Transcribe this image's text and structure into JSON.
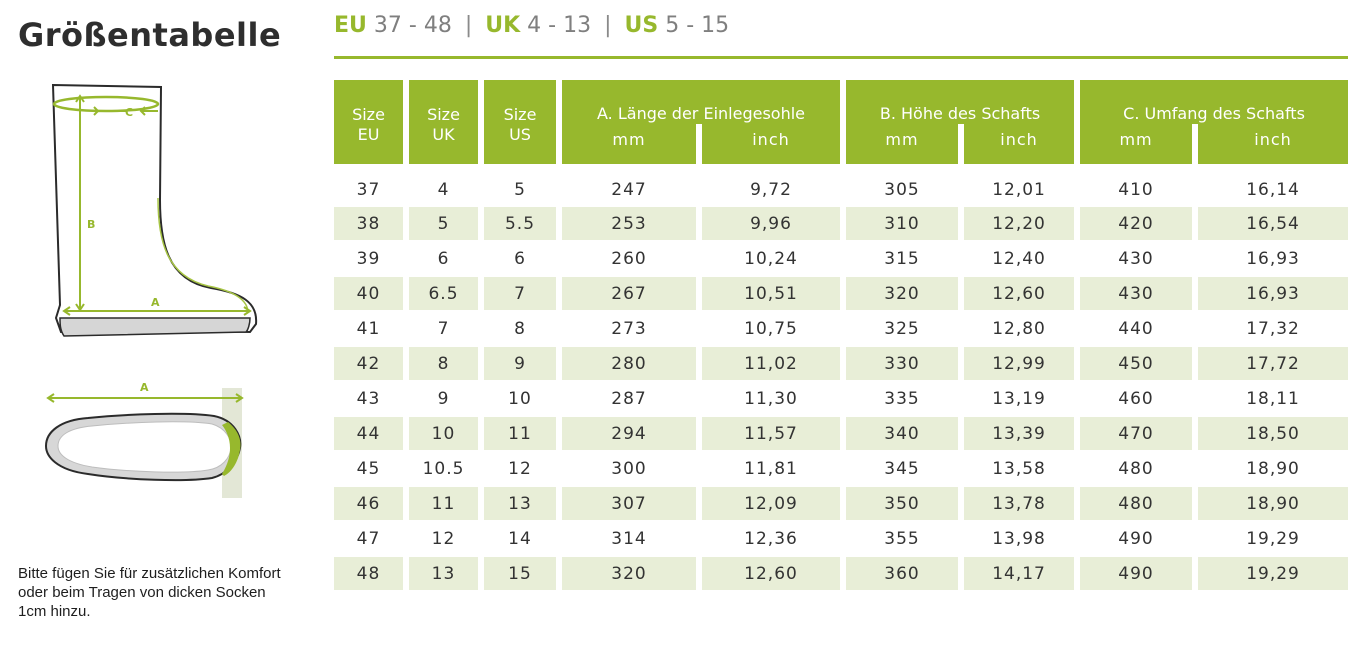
{
  "title": "Größentabelle",
  "ranges": [
    {
      "code": "EU",
      "range": "37 - 48"
    },
    {
      "code": "UK",
      "range": "4 - 13"
    },
    {
      "code": "US",
      "range": "5 - 15"
    }
  ],
  "separator": "|",
  "diagram": {
    "label_a": "A",
    "label_b": "B",
    "label_c": "C"
  },
  "table": {
    "header": {
      "size_eu": [
        "Size",
        "EU"
      ],
      "size_uk": [
        "Size",
        "UK"
      ],
      "size_us": [
        "Size",
        "US"
      ],
      "group_a": "A. Länge der Einlegesohle",
      "group_b": "B. Höhe des Schafts",
      "group_c": "C. Umfang des Schafts",
      "unit_mm": "mm",
      "unit_inch": "inch"
    },
    "rows": [
      [
        "37",
        "4",
        "5",
        "247",
        "9,72",
        "305",
        "12,01",
        "410",
        "16,14"
      ],
      [
        "38",
        "5",
        "5.5",
        "253",
        "9,96",
        "310",
        "12,20",
        "420",
        "16,54"
      ],
      [
        "39",
        "6",
        "6",
        "260",
        "10,24",
        "315",
        "12,40",
        "430",
        "16,93"
      ],
      [
        "40",
        "6.5",
        "7",
        "267",
        "10,51",
        "320",
        "12,60",
        "430",
        "16,93"
      ],
      [
        "41",
        "7",
        "8",
        "273",
        "10,75",
        "325",
        "12,80",
        "440",
        "17,32"
      ],
      [
        "42",
        "8",
        "9",
        "280",
        "11,02",
        "330",
        "12,99",
        "450",
        "17,72"
      ],
      [
        "43",
        "9",
        "10",
        "287",
        "11,30",
        "335",
        "13,19",
        "460",
        "18,11"
      ],
      [
        "44",
        "10",
        "11",
        "294",
        "11,57",
        "340",
        "13,39",
        "470",
        "18,50"
      ],
      [
        "45",
        "10.5",
        "12",
        "300",
        "11,81",
        "345",
        "13,58",
        "480",
        "18,90"
      ],
      [
        "46",
        "11",
        "13",
        "307",
        "12,09",
        "350",
        "13,78",
        "480",
        "18,90"
      ],
      [
        "47",
        "12",
        "14",
        "314",
        "12,36",
        "355",
        "13,98",
        "490",
        "19,29"
      ],
      [
        "48",
        "13",
        "15",
        "320",
        "12,60",
        "360",
        "14,17",
        "490",
        "19,29"
      ]
    ]
  },
  "note": "Bitte fügen Sie für zusätzlichen Komfort oder beim Tragen von dicken Socken 1cm hinzu.",
  "colors": {
    "accent": "#97b82d",
    "row_shade": "#e8eed7",
    "text": "#2f2f2f"
  },
  "icons": {
    "boot": "boot-side-view-icon",
    "sole": "insole-top-view-icon"
  }
}
